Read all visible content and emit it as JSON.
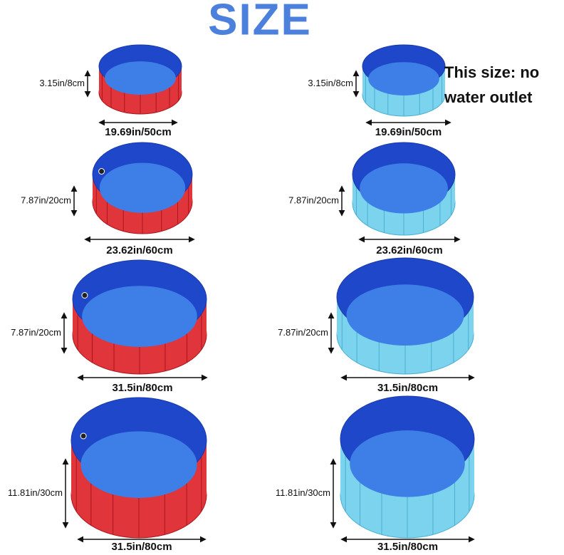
{
  "title": "SIZE",
  "note": "This size: no water outlet",
  "left": [
    {
      "height": "3.15in/8cm",
      "width": "19.69in/50cm"
    },
    {
      "height": "7.87in/20cm",
      "width": "23.62in/60cm"
    },
    {
      "height": "7.87in/20cm",
      "width": "31.5in/80cm"
    },
    {
      "height": "11.81in/30cm",
      "width": "31.5in/80cm"
    }
  ],
  "right": [
    {
      "height": "3.15in/8cm",
      "width": "19.69in/50cm"
    },
    {
      "height": "7.87in/20cm",
      "width": "23.62in/60cm"
    },
    {
      "height": "7.87in/20cm",
      "width": "31.5in/80cm"
    },
    {
      "height": "11.81in/30cm",
      "width": "31.5in/80cm"
    }
  ]
}
